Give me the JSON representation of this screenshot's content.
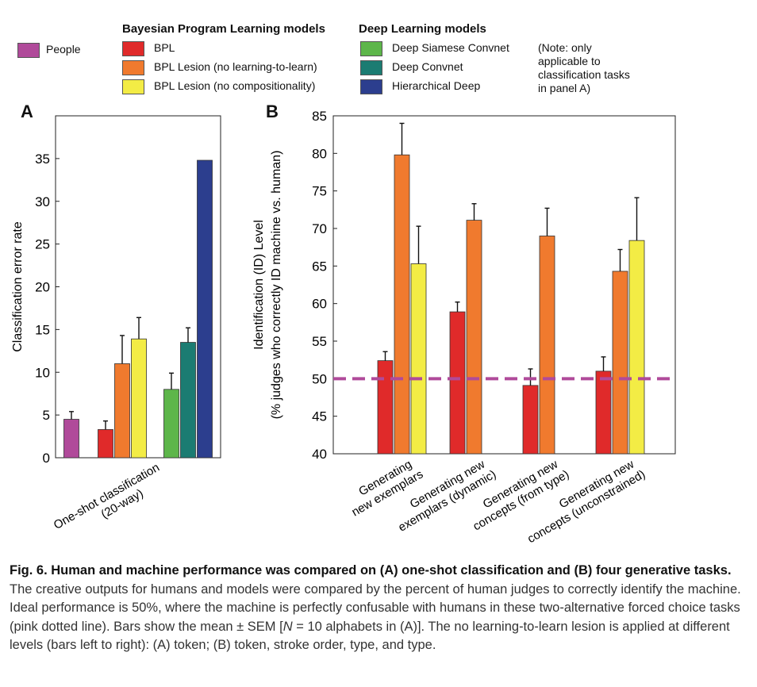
{
  "legend": {
    "bpl_heading": "Bayesian Program Learning models",
    "dl_heading": "Deep Learning models",
    "people": "People",
    "bpl": "BPL",
    "bpl_lesion_ltl": "BPL Lesion (no learning-to-learn)",
    "bpl_lesion_comp": "BPL Lesion (no compositionality)",
    "siamese": "Deep Siamese Convnet",
    "convnet": "Deep Convnet",
    "hier": "Hierarchical Deep",
    "note_lines": [
      "(Note: only",
      "applicable to",
      "classification tasks",
      "in panel A)"
    ]
  },
  "colors": {
    "people": "#b04a9a",
    "bpl": "#e02a2a",
    "bpl_lesion_ltl": "#f07a2e",
    "bpl_lesion_comp": "#f3ec45",
    "siamese": "#5db64a",
    "convnet": "#1b7c72",
    "hier": "#2c3e8e",
    "chance_line": "#b04a9a"
  },
  "panels": {
    "a": "A",
    "b": "B"
  },
  "chart_data": [
    {
      "type": "bar",
      "panel": "A",
      "ylabel": "Classification error rate",
      "ylim": [
        0,
        40
      ],
      "yticks": [
        0,
        5,
        10,
        15,
        20,
        25,
        30,
        35
      ],
      "category": "One-shot classification (20-way)",
      "category_lines": [
        "One-shot classification",
        "(20-way)"
      ],
      "bars": [
        {
          "series": "People",
          "color_key": "people",
          "value": 4.5,
          "err": 0.9
        },
        {
          "series": "BPL",
          "color_key": "bpl",
          "value": 3.3,
          "err": 1.0
        },
        {
          "series": "BPL Lesion (no learning-to-learn)",
          "color_key": "bpl_lesion_ltl",
          "value": 11.0,
          "err": 3.3
        },
        {
          "series": "BPL Lesion (no compositionality)",
          "color_key": "bpl_lesion_comp",
          "value": 13.9,
          "err": 2.5
        },
        {
          "series": "Deep Siamese Convnet",
          "color_key": "siamese",
          "value": 8.0,
          "err": 1.9
        },
        {
          "series": "Deep Convnet",
          "color_key": "convnet",
          "value": 13.5,
          "err": 1.7
        },
        {
          "series": "Hierarchical Deep",
          "color_key": "hier",
          "value": 34.8,
          "err": 0
        }
      ]
    },
    {
      "type": "bar",
      "panel": "B",
      "ylabel_lines": [
        "Identification (ID) Level",
        "(% judges who correctly ID machine vs. human)"
      ],
      "ylim": [
        40,
        85
      ],
      "yticks": [
        40,
        45,
        50,
        55,
        60,
        65,
        70,
        75,
        80,
        85
      ],
      "reference_line": 50,
      "categories": [
        {
          "lines": [
            "Generating",
            "new exemplars"
          ]
        },
        {
          "lines": [
            "Generating new",
            "exemplars (dynamic)"
          ]
        },
        {
          "lines": [
            "Generating new",
            "concepts (from type)"
          ]
        },
        {
          "lines": [
            "Generating new",
            "concepts (unconstrained)"
          ]
        }
      ],
      "series": [
        {
          "name": "BPL",
          "color_key": "bpl",
          "values": [
            52.4,
            58.9,
            49.1,
            51.0
          ],
          "errs": [
            1.2,
            1.3,
            2.2,
            1.9
          ]
        },
        {
          "name": "BPL Lesion (no learning-to-learn)",
          "color_key": "bpl_lesion_ltl",
          "values": [
            79.8,
            71.1,
            69.0,
            64.3
          ],
          "errs": [
            4.2,
            2.2,
            3.7,
            2.9
          ]
        },
        {
          "name": "BPL Lesion (no compositionality)",
          "color_key": "bpl_lesion_comp",
          "values": [
            65.3,
            null,
            null,
            68.4
          ],
          "errs": [
            5.0,
            null,
            null,
            5.7
          ]
        }
      ]
    }
  ],
  "caption": {
    "lead": "Fig. 6. Human and machine performance was compared on (A) one-shot classification and (B) four generative tasks.",
    "body": " The creative outputs for humans and models were compared by the percent of human judges to correctly identify the machine. Ideal performance is 50%, where the machine is perfectly confusable with humans in these two-alternative forced choice tasks (pink dotted line). Bars show the mean ± SEM [",
    "n_var": "N",
    "body2": " = 10 alphabets in (A)]. The no learning-to-learn lesion is applied at different levels (bars left to right): (A) token; (B) token, stroke order, type, and type."
  }
}
